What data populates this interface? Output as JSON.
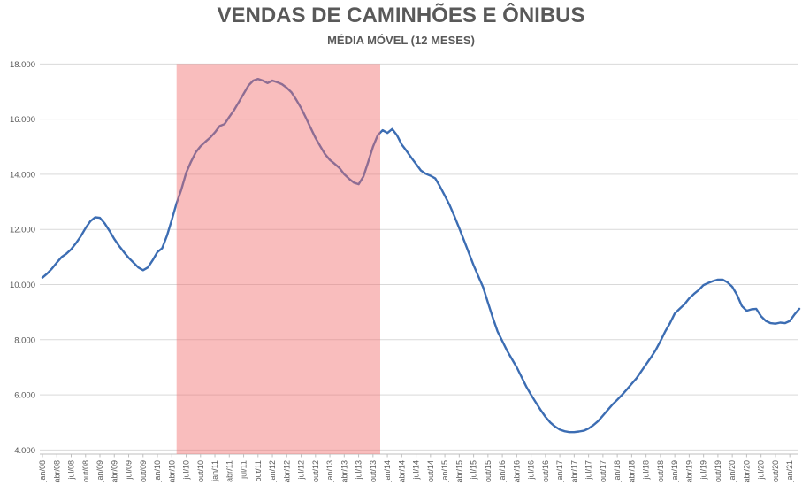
{
  "chart_data": {
    "type": "line",
    "title": "VENDAS DE CAMINHÕES E ÔNIBUS",
    "subtitle": "MÉDIA MÓVEL (12 MESES)",
    "x_start": "jan/08",
    "x_end": "mar/21",
    "x_frequency": "monthly",
    "x_tick_every_months": 3,
    "x_tick_labels": [
      "jan/08",
      "abr/08",
      "jul/08",
      "out/08",
      "jan/09",
      "abr/09",
      "jul/09",
      "out/09",
      "jan/10",
      "abr/10",
      "jul/10",
      "out/10",
      "jan/11",
      "abr/11",
      "jul/11",
      "out/11",
      "jan/12",
      "abr/12",
      "jul/12",
      "out/12",
      "jan/13",
      "abr/13",
      "jul/13",
      "out/13",
      "jan/14",
      "abr/14",
      "jul/14",
      "out/14",
      "jan/15",
      "abr/15",
      "jul/15",
      "out/15",
      "jan/16",
      "abr/16",
      "jul/16",
      "out/16",
      "jan/17",
      "abr/17",
      "jul/17",
      "out/17",
      "jan/18",
      "abr/18",
      "jul/18",
      "out/18",
      "jan/19",
      "abr/19",
      "jul/19",
      "out/19",
      "jan/20",
      "abr/20",
      "jul/20",
      "out/20",
      "jan/21"
    ],
    "y_tick_labels": [
      "4.000",
      "6.000",
      "8.000",
      "10.000",
      "12.000",
      "14.000",
      "16.000",
      "18.000"
    ],
    "ylim": [
      4000,
      18000
    ],
    "y_tick_step": 2000,
    "grid": "horizontal",
    "legend": "none",
    "values": [
      10250,
      10400,
      10580,
      10800,
      11000,
      11120,
      11280,
      11500,
      11750,
      12050,
      12300,
      12440,
      12420,
      12220,
      11950,
      11650,
      11400,
      11180,
      10970,
      10800,
      10620,
      10520,
      10620,
      10880,
      11180,
      11320,
      11780,
      12350,
      12950,
      13450,
      14050,
      14450,
      14800,
      15020,
      15180,
      15330,
      15520,
      15750,
      15820,
      16080,
      16330,
      16620,
      16920,
      17220,
      17400,
      17460,
      17400,
      17310,
      17400,
      17340,
      17270,
      17140,
      16970,
      16700,
      16400,
      16050,
      15680,
      15320,
      15020,
      14730,
      14520,
      14380,
      14230,
      14000,
      13840,
      13700,
      13640,
      13920,
      14450,
      15000,
      15420,
      15600,
      15500,
      15640,
      15420,
      15080,
      14850,
      14600,
      14370,
      14140,
      14020,
      13950,
      13850,
      13550,
      13220,
      12880,
      12480,
      12050,
      11600,
      11150,
      10700,
      10300,
      9900,
      9350,
      8800,
      8300,
      7950,
      7600,
      7300,
      7000,
      6650,
      6300,
      6000,
      5720,
      5450,
      5200,
      5000,
      4850,
      4740,
      4680,
      4650,
      4650,
      4670,
      4700,
      4780,
      4900,
      5050,
      5250,
      5450,
      5650,
      5820,
      6000,
      6200,
      6400,
      6600,
      6850,
      7100,
      7350,
      7620,
      7950,
      8300,
      8600,
      8950,
      9120,
      9280,
      9500,
      9660,
      9800,
      9980,
      10060,
      10130,
      10180,
      10180,
      10080,
      9920,
      9620,
      9220,
      9050,
      9100,
      9120,
      8850,
      8680,
      8600,
      8580,
      8620,
      8600,
      8680,
      8920,
      9120
    ],
    "highlight_band": {
      "from": "mai/10",
      "to": "nov/13",
      "from_month_index": 28,
      "to_month_index": 70.5,
      "color": "#F26C6C",
      "opacity": 0.45
    },
    "colors": {
      "line": "#3C6DB3",
      "grid": "#D9D9D9",
      "axis": "#BFBFBF",
      "text": "#595959",
      "background": "#FFFFFF"
    }
  }
}
